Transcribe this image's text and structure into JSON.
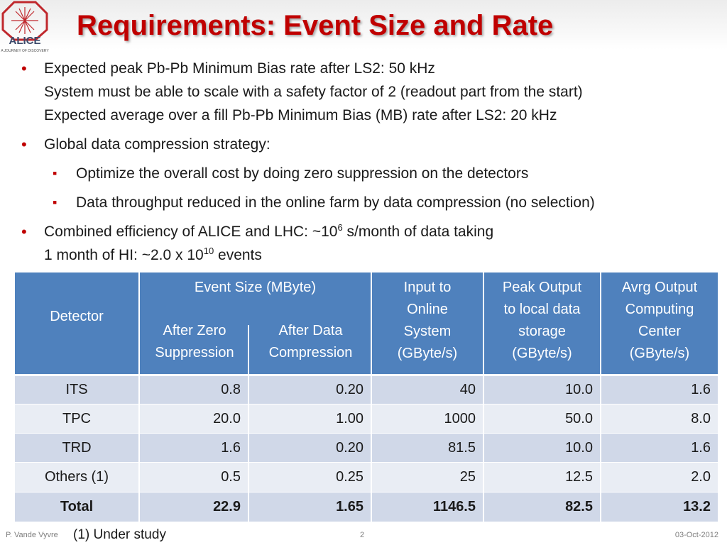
{
  "logo": {
    "name": "ALICE",
    "tagline": "A JOURNEY OF DISCOVERY"
  },
  "title": "Requirements: Event Size and Rate",
  "bullets": [
    {
      "lines": [
        [
          {
            "text": "Expected peak Pb-Pb Minimum Bias rate after LS2: 50 kHz"
          }
        ],
        [
          {
            "text": "System must be able to scale with a safety factor of 2 (readout part from the start)"
          }
        ],
        [
          {
            "text": "Expected average over a fill Pb-Pb Minimum Bias (MB) rate after LS2: 20 kHz"
          }
        ]
      ]
    },
    {
      "lines": [
        [
          {
            "text": "Global data compression strategy:"
          }
        ]
      ],
      "sub": [
        "Optimize the overall cost by doing zero suppression on the detectors",
        "Data throughput reduced in the online farm by data compression (no selection)"
      ]
    },
    {
      "lines": [
        [
          {
            "text": "Combined efficiency of ALICE and LHC: ~10"
          },
          {
            "sup": "6"
          },
          {
            "text": " s/month of data taking"
          }
        ],
        [
          {
            "text": "1 month of HI: ~2.0 x 10"
          },
          {
            "sup": "10"
          },
          {
            "text": " events"
          }
        ]
      ]
    }
  ],
  "table": {
    "header": {
      "detector": "Detector",
      "event_size": "Event Size (MByte)",
      "event_size_sub": [
        [
          "After Zero",
          "Suppression"
        ],
        [
          "After Data",
          "Compression"
        ]
      ],
      "columns": [
        [
          "Input to",
          "Online",
          "System",
          "(GByte/s)"
        ],
        [
          "Peak Output",
          "to local data",
          "storage",
          "(GByte/s)"
        ],
        [
          "Avrg Output",
          "Computing",
          "Center",
          "(GByte/s)"
        ]
      ]
    },
    "rows": [
      [
        "ITS",
        "0.8",
        "0.20",
        "40",
        "10.0",
        "1.6"
      ],
      [
        "TPC",
        "20.0",
        "1.00",
        "1000",
        "50.0",
        "8.0"
      ],
      [
        "TRD",
        "1.6",
        "0.20",
        "81.5",
        "10.0",
        "1.6"
      ],
      [
        "Others (1)",
        "0.5",
        "0.25",
        "25",
        "12.5",
        "2.0"
      ],
      [
        "Total",
        "22.9",
        "1.65",
        "1146.5",
        "82.5",
        "13.2"
      ]
    ]
  },
  "footer": {
    "author": "P. Vande Vyvre",
    "note": "(1) Under study",
    "page": "2",
    "date": "03-Oct-2012"
  }
}
